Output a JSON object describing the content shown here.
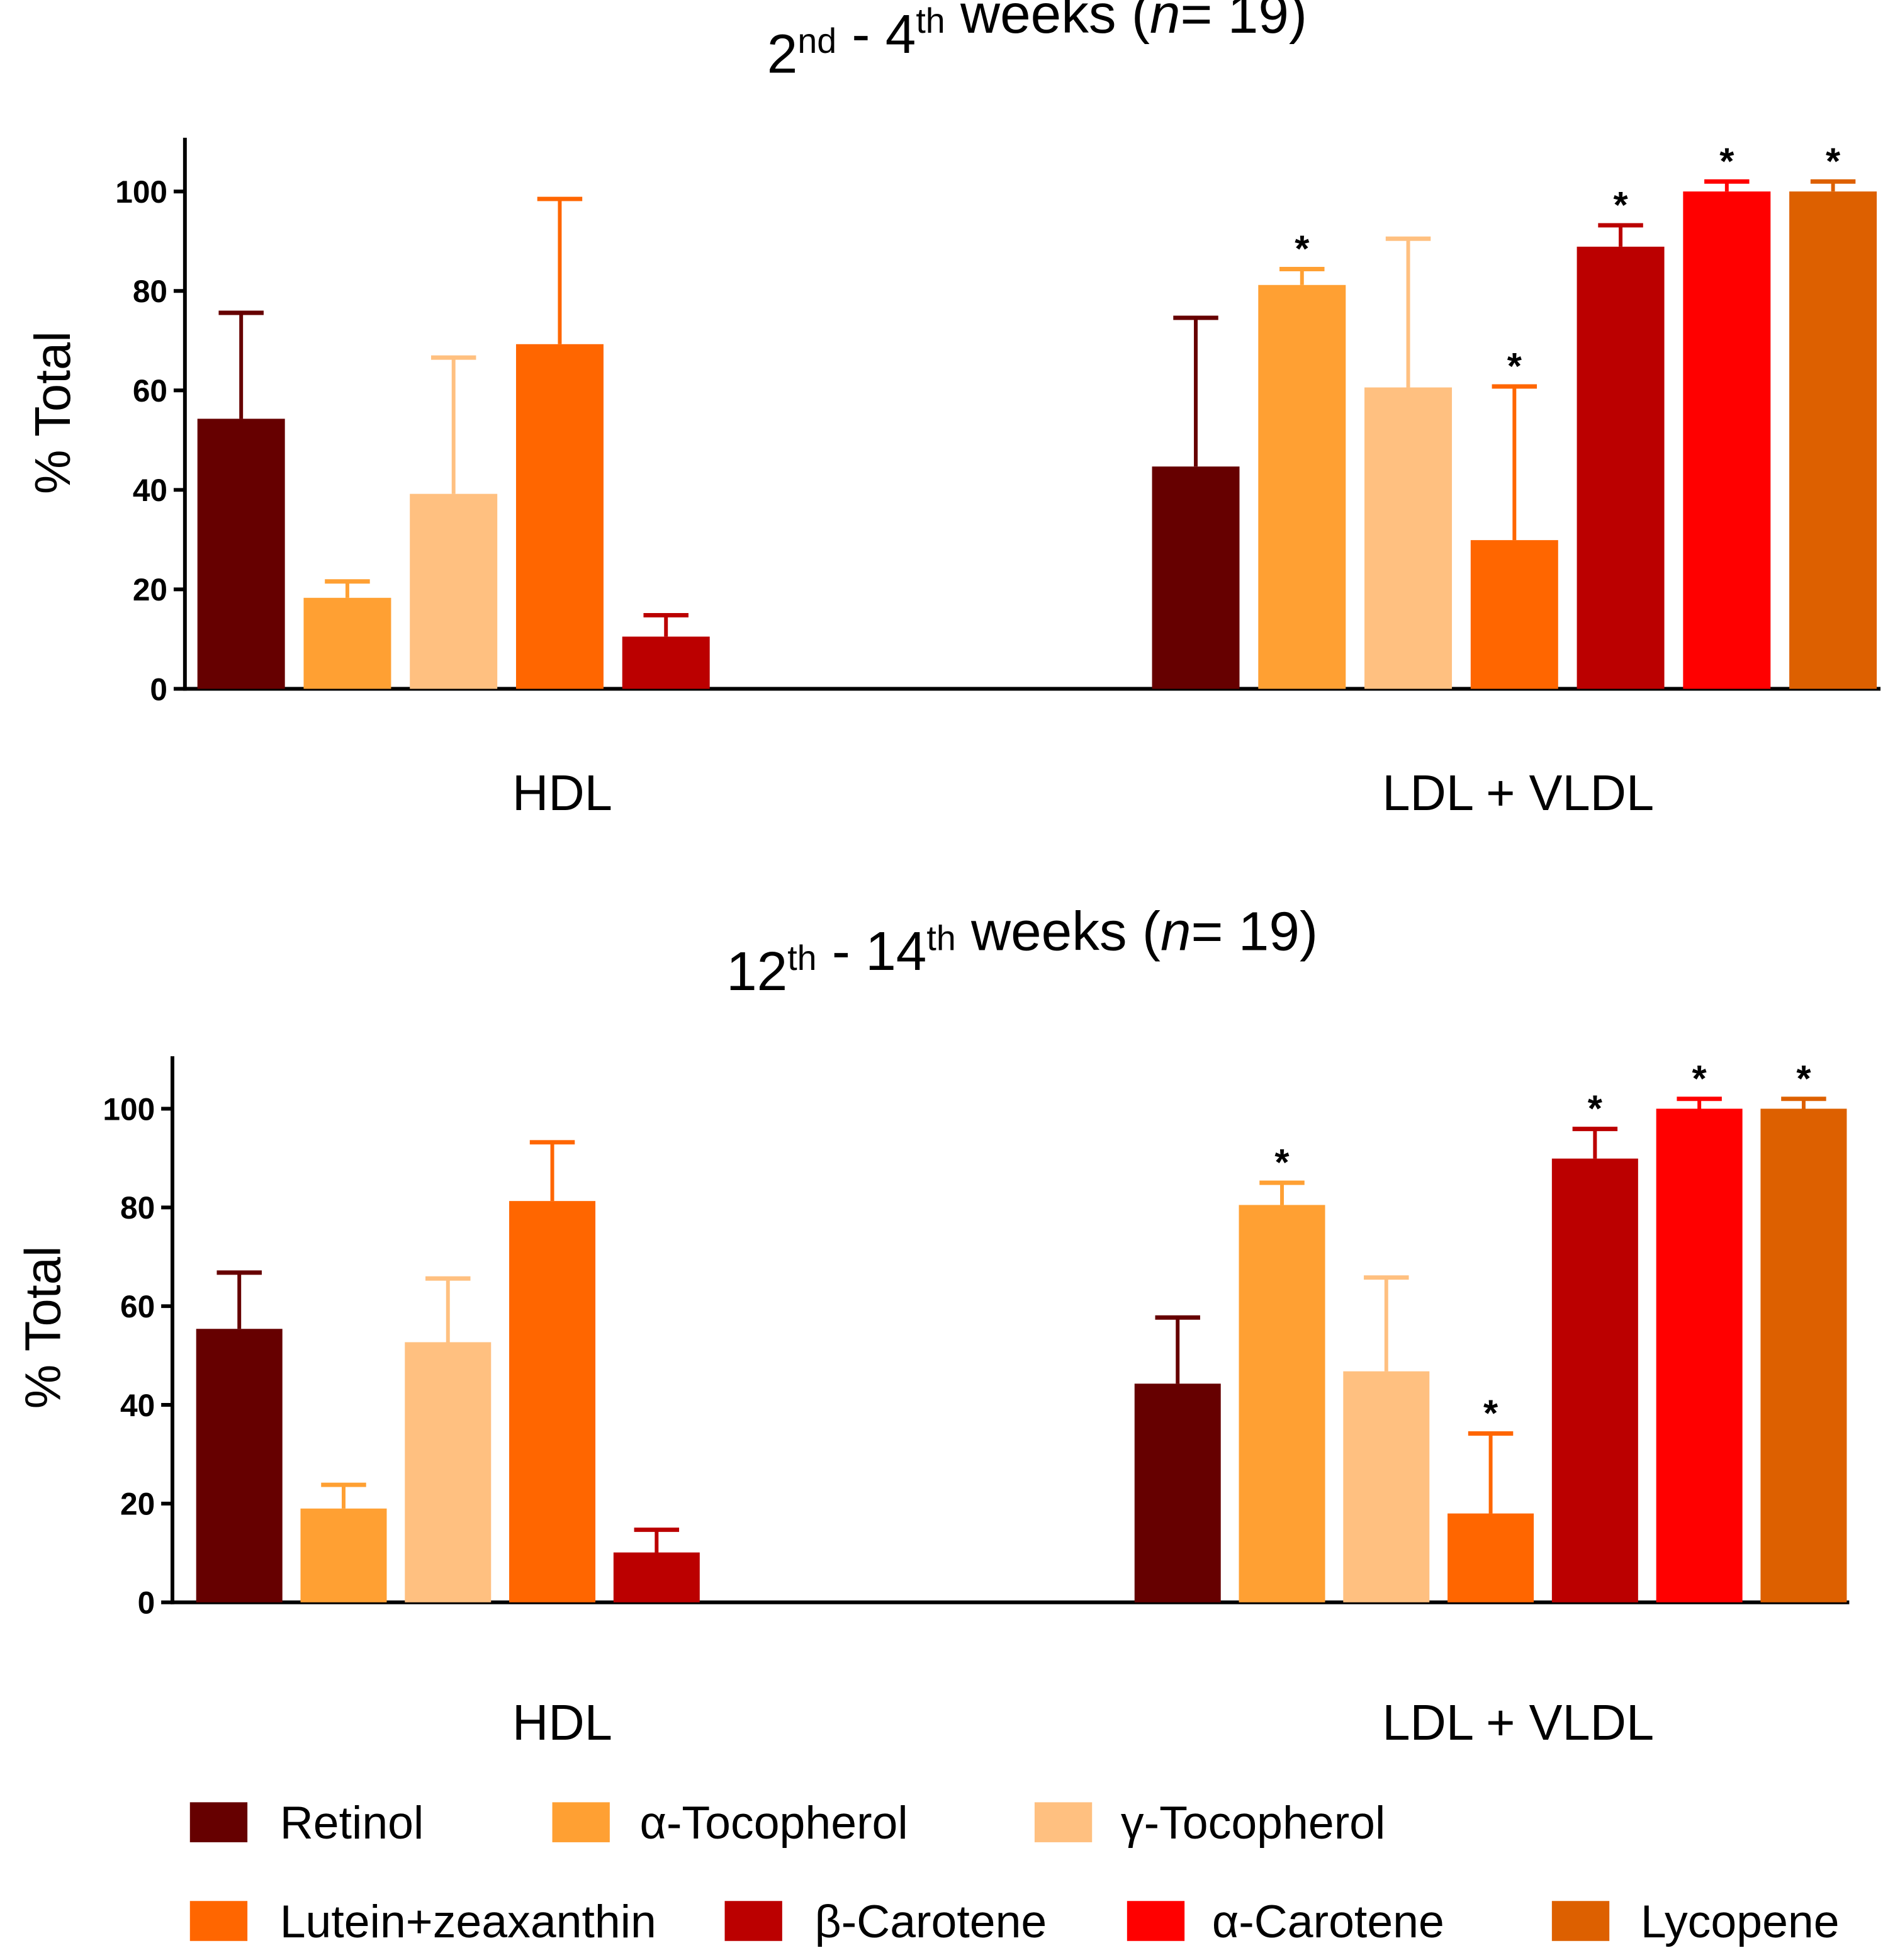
{
  "chart_data": [
    {
      "type": "bar",
      "title_parts": [
        {
          "t": "2"
        },
        {
          "t": "nd",
          "sup": true
        },
        {
          "t": " - 4"
        },
        {
          "t": "th",
          "sup": true
        },
        {
          "t": " weeks ("
        },
        {
          "t": "n",
          "italic": true
        },
        {
          "t": "= 19)"
        }
      ],
      "ylabel": "% Total",
      "ylim": [
        0,
        110
      ],
      "yticks": [
        0,
        20,
        40,
        60,
        80,
        100
      ],
      "categories": [
        "HDL",
        "LDL + VLDL"
      ],
      "groups": [
        {
          "label": "HDL",
          "series": [
            "Retinol",
            "α-Tocopherol",
            "γ-Tocopherol",
            "Lutein+zeaxanthin",
            "β-Carotene"
          ],
          "values": [
            54.3,
            18.3,
            39.2,
            69.3,
            10.5
          ],
          "errors": [
            21.3,
            3.3,
            27.4,
            29.2,
            4.3
          ],
          "significant": [
            false,
            false,
            false,
            false,
            false
          ]
        },
        {
          "label": "LDL + VLDL",
          "series": [
            "Retinol",
            "α-Tocopherol",
            "γ-Tocopherol",
            "Lutein+zeaxanthin",
            "β-Carotene",
            "α-Carotene",
            "Lycopene"
          ],
          "values": [
            44.7,
            81.2,
            60.6,
            29.9,
            88.9,
            100,
            100
          ],
          "errors": [
            29.9,
            3.2,
            29.9,
            30.9,
            4.3,
            2,
            2
          ],
          "significant": [
            false,
            true,
            false,
            true,
            true,
            true,
            true
          ]
        }
      ]
    },
    {
      "type": "bar",
      "title_parts": [
        {
          "t": "12"
        },
        {
          "t": "th",
          "sup": true
        },
        {
          "t": " - 14"
        },
        {
          "t": "th",
          "sup": true
        },
        {
          "t": " weeks ("
        },
        {
          "t": "n",
          "italic": true
        },
        {
          "t": "= 19)"
        }
      ],
      "ylabel": "% Total",
      "ylim": [
        0,
        110
      ],
      "yticks": [
        0,
        20,
        40,
        60,
        80,
        100
      ],
      "categories": [
        "HDL",
        "LDL + VLDL"
      ],
      "groups": [
        {
          "label": "HDL",
          "series": [
            "Retinol",
            "α-Tocopherol",
            "γ-Tocopherol",
            "Lutein+zeaxanthin",
            "β-Carotene"
          ],
          "values": [
            55.4,
            19.0,
            52.7,
            81.3,
            10.1
          ],
          "errors": [
            11.4,
            4.8,
            12.9,
            11.9,
            4.6
          ],
          "significant": [
            false,
            false,
            false,
            false,
            false
          ]
        },
        {
          "label": "LDL + VLDL",
          "series": [
            "Retinol",
            "α-Tocopherol",
            "γ-Tocopherol",
            "Lutein+zeaxanthin",
            "β-Carotene",
            "α-Carotene",
            "Lycopene"
          ],
          "values": [
            44.3,
            80.5,
            46.8,
            18.0,
            89.9,
            100,
            100
          ],
          "errors": [
            13.4,
            4.5,
            19.0,
            16.2,
            6.0,
            2,
            2
          ],
          "significant": [
            false,
            true,
            false,
            true,
            true,
            true,
            true
          ]
        }
      ]
    }
  ],
  "significance_marker": "*",
  "legend": [
    {
      "label": "Retinol",
      "color": "#660000"
    },
    {
      "label": "α-Tocopherol",
      "color": "#ffa033"
    },
    {
      "label": "γ-Tocopherol",
      "color": "#ffc080"
    },
    {
      "label": "Lutein+zeaxanthin",
      "color": "#ff6600"
    },
    {
      "label": "β-Carotene",
      "color": "#bb0000"
    },
    {
      "label": "α-Carotene",
      "color": "#ff0000"
    },
    {
      "label": "Lycopene",
      "color": "#dd6000"
    }
  ]
}
